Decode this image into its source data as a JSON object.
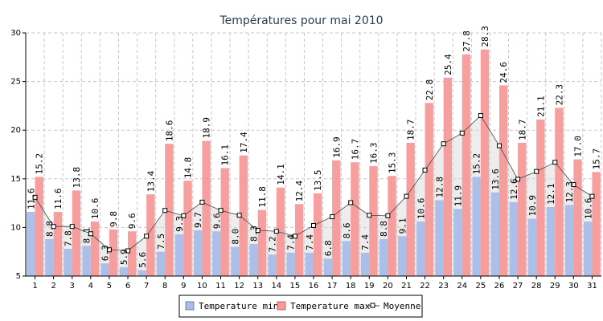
{
  "chart_data": {
    "type": "bar",
    "title": "Températures pour mai 2010",
    "categories": [
      "1",
      "2",
      "3",
      "4",
      "5",
      "6",
      "7",
      "8",
      "9",
      "10",
      "11",
      "12",
      "13",
      "14",
      "15",
      "16",
      "17",
      "18",
      "19",
      "20",
      "21",
      "22",
      "23",
      "24",
      "25",
      "26",
      "27",
      "28",
      "29",
      "30",
      "31"
    ],
    "series": [
      {
        "name": "Temperature min",
        "type": "bar",
        "color": "#a8bde8",
        "values": [
          11.6,
          8.8,
          7.8,
          8.1,
          6.3,
          5.9,
          5.6,
          7.5,
          9.3,
          9.7,
          9.6,
          8.0,
          8.3,
          7.2,
          7.4,
          7.4,
          6.8,
          8.6,
          7.4,
          8.8,
          9.1,
          10.6,
          12.8,
          11.9,
          15.2,
          13.6,
          12.6,
          10.9,
          12.1,
          12.3,
          10.6
        ]
      },
      {
        "name": "Temperature max",
        "type": "bar",
        "color": "#f79a9a",
        "values": [
          15.2,
          11.6,
          13.8,
          10.6,
          9.8,
          9.6,
          13.4,
          18.6,
          14.8,
          18.9,
          16.1,
          17.4,
          11.8,
          14.1,
          12.4,
          13.5,
          16.9,
          16.7,
          16.3,
          15.3,
          18.7,
          22.8,
          25.4,
          27.8,
          28.3,
          24.6,
          18.7,
          21.1,
          22.3,
          17.0,
          15.7
        ]
      },
      {
        "name": "Moyenne",
        "type": "line",
        "color": "#444444",
        "values": [
          13.1,
          10.1,
          10.1,
          9.35,
          7.7,
          7.6,
          9.1,
          11.75,
          11.2,
          12.6,
          11.75,
          11.25,
          9.7,
          9.6,
          9.1,
          10.2,
          11.1,
          12.55,
          11.25,
          11.2,
          13.2,
          15.9,
          18.6,
          19.7,
          21.5,
          18.4,
          14.95,
          15.75,
          16.7,
          14.4,
          13.2
        ]
      }
    ],
    "ylim": [
      5,
      30
    ],
    "yticks": [
      5,
      10,
      15,
      20,
      25,
      30
    ],
    "grid": true,
    "legend_position": "bottom-center"
  }
}
